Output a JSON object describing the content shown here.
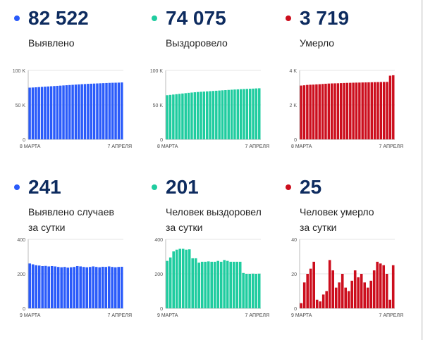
{
  "colors": {
    "blue": "#2a5bfa",
    "green": "#1fcc9f",
    "red": "#cc0e1d",
    "text_dark": "#0d2b5f"
  },
  "panels": [
    {
      "value": "82 522",
      "label1": "Выявлено",
      "label2": "",
      "color": "blue"
    },
    {
      "value": "74 075",
      "label1": "Выздоровело",
      "label2": "",
      "color": "green"
    },
    {
      "value": "3 719",
      "label1": "Умерло",
      "label2": "",
      "color": "red"
    },
    {
      "value": "241",
      "label1": "Выявлено случаев",
      "label2": "за сутки",
      "color": "blue"
    },
    {
      "value": "201",
      "label1": "Человек выздоровел",
      "label2": "за сутки",
      "color": "green"
    },
    {
      "value": "25",
      "label1": "Человек умерло",
      "label2": "за сутки",
      "color": "red"
    }
  ],
  "chart_data": [
    {
      "type": "bar",
      "title": "Выявлено",
      "ylim": [
        0,
        100000
      ],
      "y_ticks": [
        "0",
        "50 K",
        "100 K"
      ],
      "x_tick_labels": [
        "8 МАРТА",
        "7 АПРЕЛЯ"
      ],
      "x": [
        "8 марта",
        "9 марта",
        "10 марта",
        "11 марта",
        "12 марта",
        "13 марта",
        "14 марта",
        "15 марта",
        "16 марта",
        "17 марта",
        "18 марта",
        "19 марта",
        "20 марта",
        "21 марта",
        "22 марта",
        "23 марта",
        "24 марта",
        "25 марта",
        "26 марта",
        "27 марта",
        "28 марта",
        "29 марта",
        "30 марта",
        "31 марта",
        "1 апреля",
        "2 апреля",
        "3 апреля",
        "4 апреля",
        "5 апреля",
        "6 апреля",
        "7 апреля"
      ],
      "values": [
        75000,
        75200,
        75500,
        75800,
        76100,
        76400,
        76700,
        77000,
        77300,
        77600,
        77900,
        78200,
        78500,
        78800,
        79100,
        79400,
        79700,
        80000,
        80200,
        80500,
        80700,
        80900,
        81100,
        81300,
        81500,
        81700,
        81900,
        82050,
        82150,
        82281,
        82522
      ],
      "color": "blue"
    },
    {
      "type": "bar",
      "title": "Выздоровело",
      "ylim": [
        0,
        100000
      ],
      "y_ticks": [
        "0",
        "50 K",
        "100 K"
      ],
      "x_tick_labels": [
        "8 МАРТА",
        "7 АПРЕЛЯ"
      ],
      "x": [
        "8 марта",
        "9 марта",
        "10 марта",
        "11 марта",
        "12 марта",
        "13 марта",
        "14 марта",
        "15 марта",
        "16 марта",
        "17 марта",
        "18 марта",
        "19 марта",
        "20 марта",
        "21 марта",
        "22 марта",
        "23 марта",
        "24 марта",
        "25 марта",
        "26 марта",
        "27 марта",
        "28 марта",
        "29 марта",
        "30 марта",
        "31 марта",
        "1 апреля",
        "2 апреля",
        "3 апреля",
        "4 апреля",
        "5 апреля",
        "6 апреля",
        "7 апреля"
      ],
      "values": [
        64000,
        64500,
        65000,
        65500,
        66000,
        66500,
        67000,
        67500,
        67900,
        68300,
        68700,
        69000,
        69300,
        69600,
        69900,
        70200,
        70500,
        70800,
        71100,
        71400,
        71700,
        72000,
        72300,
        72500,
        72800,
        73000,
        73200,
        73400,
        73600,
        73874,
        74075
      ],
      "color": "green"
    },
    {
      "type": "bar",
      "title": "Умерло",
      "ylim": [
        0,
        4000
      ],
      "y_ticks": [
        "0",
        "2 K",
        "4 K"
      ],
      "x_tick_labels": [
        "8 МАРТА",
        "7 АПРЕЛЯ"
      ],
      "x": [
        "8 марта",
        "9 марта",
        "10 марта",
        "11 марта",
        "12 марта",
        "13 марта",
        "14 марта",
        "15 марта",
        "16 марта",
        "17 марта",
        "18 марта",
        "19 марта",
        "20 марта",
        "21 марта",
        "22 марта",
        "23 марта",
        "24 марта",
        "25 марта",
        "26 марта",
        "27 марта",
        "28 марта",
        "29 марта",
        "30 марта",
        "31 марта",
        "1 апреля",
        "2 апреля",
        "3 апреля",
        "4 апреля",
        "5 апреля",
        "6 апреля",
        "7 апреля"
      ],
      "values": [
        3120,
        3136,
        3158,
        3169,
        3176,
        3189,
        3199,
        3213,
        3226,
        3237,
        3245,
        3249,
        3253,
        3261,
        3270,
        3277,
        3281,
        3287,
        3292,
        3295,
        3300,
        3304,
        3308,
        3312,
        3318,
        3322,
        3326,
        3331,
        3333,
        3694,
        3719
      ],
      "color": "red"
    },
    {
      "type": "bar",
      "title": "Выявлено случаев за сутки",
      "ylim": [
        0,
        400
      ],
      "y_ticks": [
        "0",
        "200",
        "400"
      ],
      "x_tick_labels": [
        "9 МАРТА",
        "7 АПРЕЛЯ"
      ],
      "x": [
        "9 марта",
        "10 марта",
        "11 марта",
        "12 марта",
        "13 марта",
        "14 марта",
        "15 марта",
        "16 марта",
        "17 марта",
        "18 марта",
        "19 марта",
        "20 марта",
        "21 марта",
        "22 марта",
        "23 марта",
        "24 марта",
        "25 марта",
        "26 марта",
        "27 марта",
        "28 марта",
        "29 марта",
        "30 марта",
        "31 марта",
        "1 апреля",
        "2 апреля",
        "3 апреля",
        "4 апреля",
        "5 апреля",
        "6 апреля",
        "7 апреля"
      ],
      "values": [
        260,
        255,
        250,
        248,
        245,
        246,
        243,
        245,
        243,
        240,
        238,
        240,
        236,
        238,
        240,
        245,
        243,
        240,
        238,
        240,
        243,
        240,
        238,
        241,
        240,
        243,
        240,
        238,
        240,
        241
      ],
      "color": "blue"
    },
    {
      "type": "bar",
      "title": "Человек выздоровел за сутки",
      "ylim": [
        0,
        400
      ],
      "y_ticks": [
        "0",
        "200",
        "400"
      ],
      "x_tick_labels": [
        "9 МАРТА",
        "7 АПРЕЛЯ"
      ],
      "x": [
        "9 марта",
        "10 марта",
        "11 марта",
        "12 марта",
        "13 марта",
        "14 марта",
        "15 марта",
        "16 марта",
        "17 марта",
        "18 марта",
        "19 марта",
        "20 марта",
        "21 марта",
        "22 марта",
        "23 марта",
        "24 марта",
        "25 марта",
        "26 марта",
        "27 марта",
        "28 марта",
        "29 марта",
        "30 марта",
        "31 марта",
        "1 апреля",
        "2 апреля",
        "3 апреля",
        "4 апреля",
        "5 апреля",
        "6 апреля",
        "7 апреля"
      ],
      "values": [
        275,
        295,
        330,
        340,
        345,
        345,
        340,
        342,
        290,
        290,
        265,
        270,
        270,
        272,
        270,
        270,
        275,
        270,
        280,
        275,
        270,
        270,
        270,
        270,
        205,
        200,
        200,
        201,
        200,
        201
      ],
      "color": "green"
    },
    {
      "type": "bar",
      "title": "Человек умерло за сутки",
      "ylim": [
        0,
        40
      ],
      "y_ticks": [
        "0",
        "20",
        "40"
      ],
      "x_tick_labels": [
        "9 МАРТА",
        "7 АПРЕЛЯ"
      ],
      "x": [
        "9 марта",
        "10 марта",
        "11 марта",
        "12 марта",
        "13 марта",
        "14 марта",
        "15 марта",
        "16 марта",
        "17 марта",
        "18 марта",
        "19 марта",
        "20 марта",
        "21 марта",
        "22 марта",
        "23 марта",
        "24 марта",
        "25 марта",
        "26 марта",
        "27 марта",
        "28 марта",
        "29 марта",
        "30 марта",
        "31 марта",
        "1 апреля",
        "2 апреля",
        "3 апреля",
        "4 апреля",
        "5 апреля",
        "6 апреля",
        "7 апреля"
      ],
      "values": [
        3,
        15,
        20,
        23,
        27,
        5,
        4,
        8,
        10,
        28,
        22,
        12,
        15,
        20,
        12,
        10,
        16,
        22,
        18,
        20,
        15,
        12,
        16,
        22,
        27,
        26,
        25,
        20,
        5,
        25
      ],
      "color": "red"
    }
  ]
}
